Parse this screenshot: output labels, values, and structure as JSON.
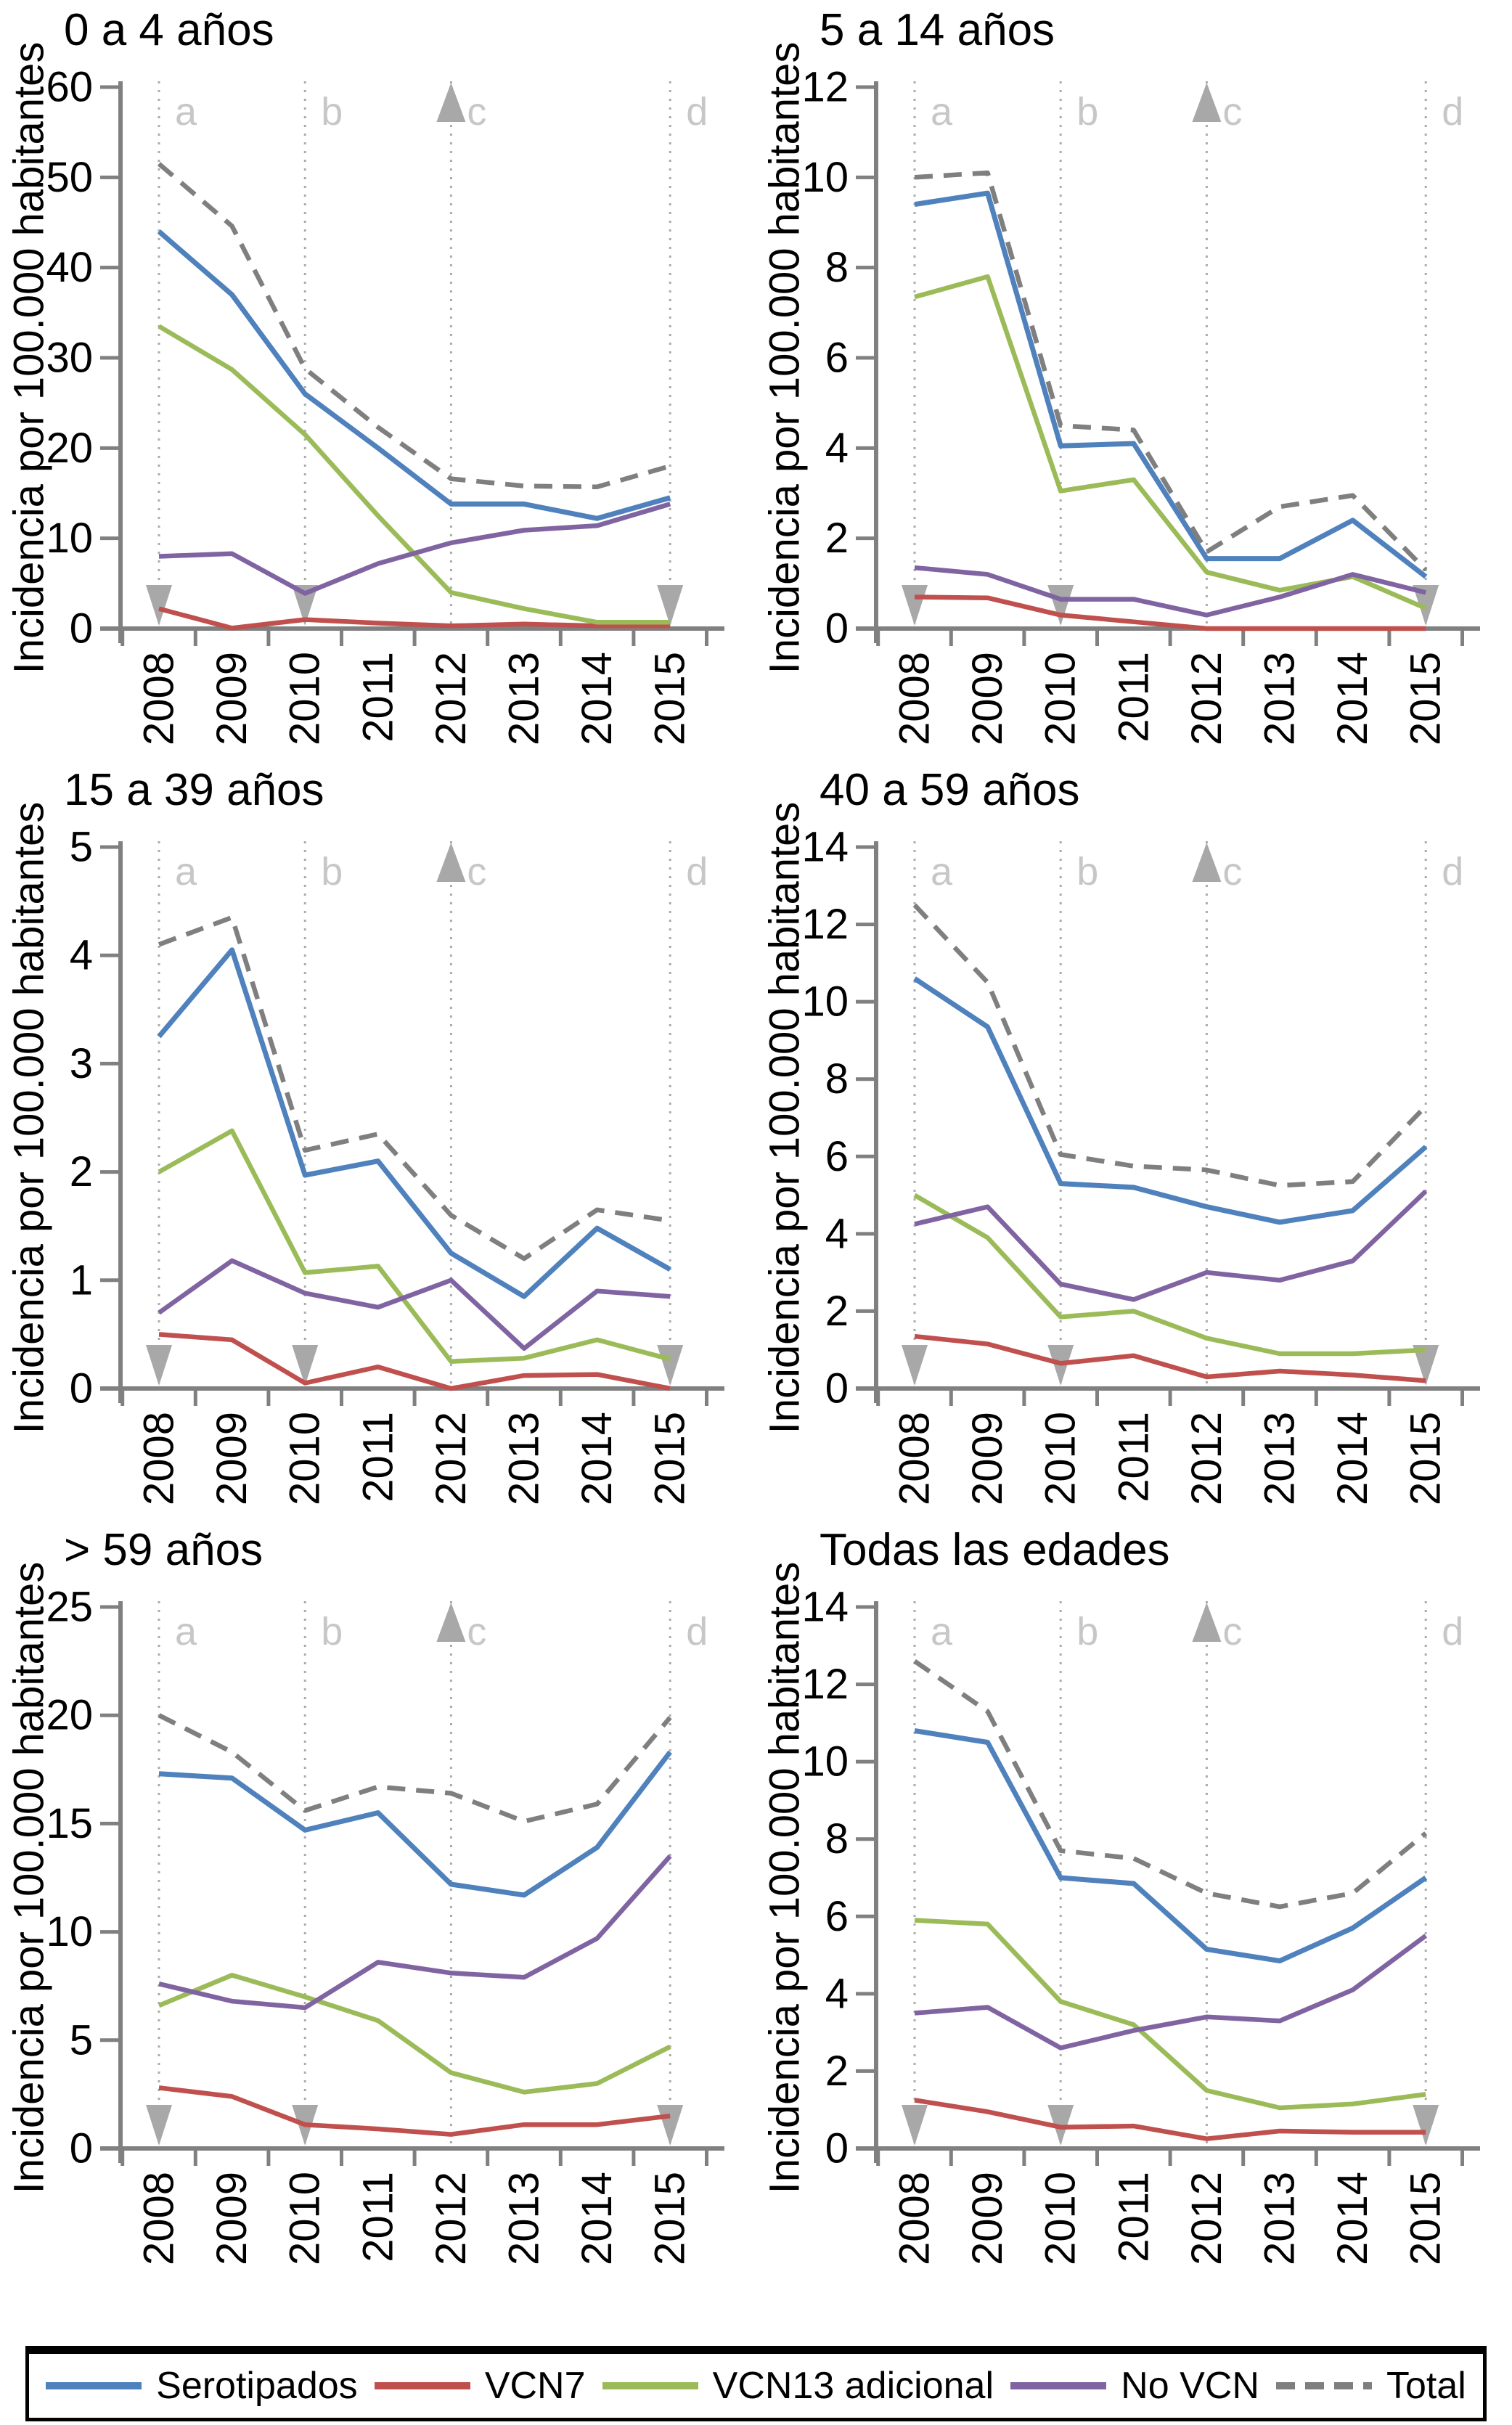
{
  "figure": {
    "y_axis_label": "Incidencia por 100.000 habitantes",
    "years": [
      "2008",
      "2009",
      "2010",
      "2011",
      "2012",
      "2013",
      "2014",
      "2015"
    ],
    "annotation_lines": [
      {
        "label": "a",
        "year": "2008",
        "up_arrow": false
      },
      {
        "label": "b",
        "year": "2010",
        "up_arrow": false
      },
      {
        "label": "c",
        "year": "2012",
        "up_arrow": true
      },
      {
        "label": "d",
        "year": "2015",
        "up_arrow": false
      }
    ],
    "bottom_arrow_years": [
      "2008",
      "2010",
      "2015"
    ],
    "series_styles": {
      "serotipados": {
        "color": "#4F81BD",
        "dashed": false
      },
      "vcn7": {
        "color": "#C0504D",
        "dashed": false
      },
      "vcn13": {
        "color": "#9BBB59",
        "dashed": false
      },
      "novcn": {
        "color": "#8064A2",
        "dashed": false
      },
      "total": {
        "color": "#7F7F7F",
        "dashed": true
      }
    },
    "annotation_colors": {
      "dotted_line": "#ABABAB",
      "letter_label": "#C7C7C7",
      "arrow": "#A8A8A8",
      "axis": "#808080"
    },
    "legend": [
      {
        "key": "serotipados",
        "label": "Serotipados"
      },
      {
        "key": "vcn7",
        "label": "VCN7"
      },
      {
        "key": "vcn13",
        "label": "VCN13 adicional"
      },
      {
        "key": "novcn",
        "label": "No VCN"
      },
      {
        "key": "total",
        "label": "Total"
      }
    ]
  },
  "chart_data": [
    {
      "type": "line",
      "title": "0 a 4 años",
      "x": [
        "2008",
        "2009",
        "2010",
        "2011",
        "2012",
        "2013",
        "2014",
        "2015"
      ],
      "ylim": [
        0,
        60
      ],
      "ytick_step": 10,
      "series": [
        {
          "key": "serotipados",
          "name": "Serotipados",
          "values": [
            44.0,
            37.0,
            26.0,
            20.0,
            13.8,
            13.8,
            12.2,
            14.5
          ]
        },
        {
          "key": "vcn7",
          "name": "VCN7",
          "values": [
            2.2,
            0.05,
            1.0,
            0.6,
            0.3,
            0.5,
            0.3,
            0.3
          ]
        },
        {
          "key": "vcn13",
          "name": "VCN13 adicional",
          "values": [
            33.5,
            28.7,
            21.5,
            12.5,
            4.0,
            2.2,
            0.7,
            0.7
          ]
        },
        {
          "key": "novcn",
          "name": "No VCN",
          "values": [
            8.0,
            8.3,
            3.9,
            7.2,
            9.5,
            10.9,
            11.4,
            13.8
          ]
        },
        {
          "key": "total",
          "name": "Total",
          "values": [
            51.5,
            44.6,
            28.8,
            22.3,
            16.6,
            15.8,
            15.7,
            18.0
          ]
        }
      ]
    },
    {
      "type": "line",
      "title": "5 a 14 años",
      "x": [
        "2008",
        "2009",
        "2010",
        "2011",
        "2012",
        "2013",
        "2014",
        "2015"
      ],
      "ylim": [
        0,
        12
      ],
      "ytick_step": 2,
      "series": [
        {
          "key": "serotipados",
          "name": "Serotipados",
          "values": [
            9.4,
            9.65,
            4.05,
            4.1,
            1.55,
            1.55,
            2.4,
            1.15
          ]
        },
        {
          "key": "vcn7",
          "name": "VCN7",
          "values": [
            0.7,
            0.68,
            0.3,
            0.15,
            0.0,
            0.0,
            0.0,
            0.0
          ]
        },
        {
          "key": "vcn13",
          "name": "VCN13 adicional",
          "values": [
            7.35,
            7.8,
            3.05,
            3.3,
            1.25,
            0.85,
            1.15,
            0.45
          ]
        },
        {
          "key": "novcn",
          "name": "No VCN",
          "values": [
            1.35,
            1.2,
            0.65,
            0.65,
            0.3,
            0.7,
            1.2,
            0.8
          ]
        },
        {
          "key": "total",
          "name": "Total",
          "values": [
            10.0,
            10.1,
            4.5,
            4.4,
            1.7,
            2.7,
            2.95,
            1.3
          ]
        }
      ]
    },
    {
      "type": "line",
      "title": "15 a 39 años",
      "x": [
        "2008",
        "2009",
        "2010",
        "2011",
        "2012",
        "2013",
        "2014",
        "2015"
      ],
      "ylim": [
        0,
        5
      ],
      "ytick_step": 1,
      "series": [
        {
          "key": "serotipados",
          "name": "Serotipados",
          "values": [
            3.25,
            4.05,
            1.97,
            2.1,
            1.25,
            0.85,
            1.48,
            1.1
          ]
        },
        {
          "key": "vcn7",
          "name": "VCN7",
          "values": [
            0.5,
            0.45,
            0.05,
            0.2,
            0.0,
            0.12,
            0.13,
            0.0
          ]
        },
        {
          "key": "vcn13",
          "name": "VCN13 adicional",
          "values": [
            2.0,
            2.38,
            1.07,
            1.13,
            0.25,
            0.28,
            0.45,
            0.27
          ]
        },
        {
          "key": "novcn",
          "name": "No VCN",
          "values": [
            0.7,
            1.18,
            0.88,
            0.75,
            1.0,
            0.37,
            0.9,
            0.85
          ]
        },
        {
          "key": "total",
          "name": "Total",
          "values": [
            4.1,
            4.35,
            2.2,
            2.35,
            1.6,
            1.2,
            1.65,
            1.55
          ]
        }
      ]
    },
    {
      "type": "line",
      "title": "40 a 59 años",
      "x": [
        "2008",
        "2009",
        "2010",
        "2011",
        "2012",
        "2013",
        "2014",
        "2015"
      ],
      "ylim": [
        0,
        14
      ],
      "ytick_step": 2,
      "series": [
        {
          "key": "serotipados",
          "name": "Serotipados",
          "values": [
            10.6,
            9.35,
            5.3,
            5.2,
            4.7,
            4.3,
            4.6,
            6.25
          ]
        },
        {
          "key": "vcn7",
          "name": "VCN7",
          "values": [
            1.35,
            1.15,
            0.65,
            0.85,
            0.3,
            0.45,
            0.35,
            0.2
          ]
        },
        {
          "key": "vcn13",
          "name": "VCN13 adicional",
          "values": [
            5.0,
            3.9,
            1.85,
            2.0,
            1.3,
            0.9,
            0.9,
            1.0
          ]
        },
        {
          "key": "novcn",
          "name": "No VCN",
          "values": [
            4.25,
            4.7,
            2.7,
            2.3,
            3.0,
            2.8,
            3.3,
            5.1
          ]
        },
        {
          "key": "total",
          "name": "Total",
          "values": [
            12.5,
            10.5,
            6.05,
            5.75,
            5.65,
            5.25,
            5.35,
            7.3
          ]
        }
      ]
    },
    {
      "type": "line",
      "title": "> 59 años",
      "x": [
        "2008",
        "2009",
        "2010",
        "2011",
        "2012",
        "2013",
        "2014",
        "2015"
      ],
      "ylim": [
        0,
        25
      ],
      "ytick_step": 5,
      "series": [
        {
          "key": "serotipados",
          "name": "Serotipados",
          "values": [
            17.3,
            17.1,
            14.7,
            15.5,
            12.2,
            11.7,
            13.9,
            18.3
          ]
        },
        {
          "key": "vcn7",
          "name": "VCN7",
          "values": [
            2.8,
            2.4,
            1.1,
            0.9,
            0.65,
            1.1,
            1.1,
            1.5
          ]
        },
        {
          "key": "vcn13",
          "name": "VCN13 adicional",
          "values": [
            6.6,
            8.0,
            7.0,
            5.9,
            3.5,
            2.6,
            3.0,
            4.7
          ]
        },
        {
          "key": "novcn",
          "name": "No VCN",
          "values": [
            7.6,
            6.8,
            6.5,
            8.6,
            8.1,
            7.9,
            9.7,
            13.5
          ]
        },
        {
          "key": "total",
          "name": "Total",
          "values": [
            20.0,
            18.3,
            15.6,
            16.7,
            16.4,
            15.1,
            15.9,
            19.9
          ]
        }
      ]
    },
    {
      "type": "line",
      "title": "Todas las edades",
      "x": [
        "2008",
        "2009",
        "2010",
        "2011",
        "2012",
        "2013",
        "2014",
        "2015"
      ],
      "ylim": [
        0,
        14
      ],
      "ytick_step": 2,
      "series": [
        {
          "key": "serotipados",
          "name": "Serotipados",
          "values": [
            10.8,
            10.5,
            7.0,
            6.85,
            5.15,
            4.85,
            5.7,
            7.0
          ]
        },
        {
          "key": "vcn7",
          "name": "VCN7",
          "values": [
            1.25,
            0.95,
            0.55,
            0.58,
            0.25,
            0.45,
            0.42,
            0.42
          ]
        },
        {
          "key": "vcn13",
          "name": "VCN13 adicional",
          "values": [
            5.9,
            5.8,
            3.8,
            3.2,
            1.5,
            1.05,
            1.15,
            1.4
          ]
        },
        {
          "key": "novcn",
          "name": "No VCN",
          "values": [
            3.5,
            3.65,
            2.6,
            3.05,
            3.4,
            3.3,
            4.1,
            5.5
          ]
        },
        {
          "key": "total",
          "name": "Total",
          "values": [
            12.6,
            11.3,
            7.7,
            7.5,
            6.6,
            6.25,
            6.6,
            8.15
          ]
        }
      ]
    }
  ]
}
